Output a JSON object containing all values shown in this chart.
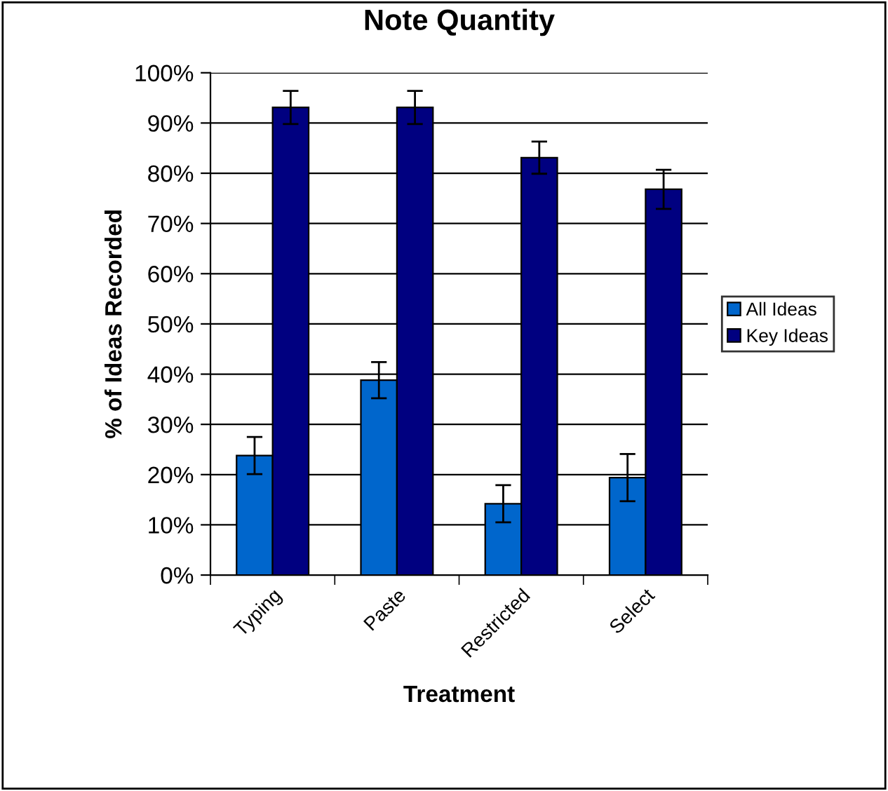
{
  "chart_data": {
    "type": "bar",
    "title": "Note Quantity",
    "xlabel": "Treatment",
    "ylabel": "% of Ideas Recorded",
    "categories": [
      "Typing",
      "Paste",
      "Restricted",
      "Select"
    ],
    "series": [
      {
        "name": "All Ideas",
        "color": "#0066cc",
        "values": [
          23.8,
          38.8,
          14.2,
          19.4
        ],
        "errors": [
          3.7,
          3.6,
          3.7,
          4.7
        ]
      },
      {
        "name": "Key Ideas",
        "color": "#000080",
        "values": [
          93.1,
          93.1,
          83.1,
          76.8
        ],
        "errors": [
          3.3,
          3.3,
          3.2,
          3.9
        ]
      }
    ],
    "ylim": [
      0,
      100
    ],
    "yticks": [
      {
        "value": 0,
        "label": "0%"
      },
      {
        "value": 10,
        "label": "10%"
      },
      {
        "value": 20,
        "label": "20%"
      },
      {
        "value": 30,
        "label": "30%"
      },
      {
        "value": 40,
        "label": "40%"
      },
      {
        "value": 50,
        "label": "50%"
      },
      {
        "value": 60,
        "label": "60%"
      },
      {
        "value": 70,
        "label": "70%"
      },
      {
        "value": 80,
        "label": "80%"
      },
      {
        "value": 90,
        "label": "90%"
      },
      {
        "value": 100,
        "label": "100%"
      }
    ],
    "grid": "y",
    "legend": "right"
  }
}
